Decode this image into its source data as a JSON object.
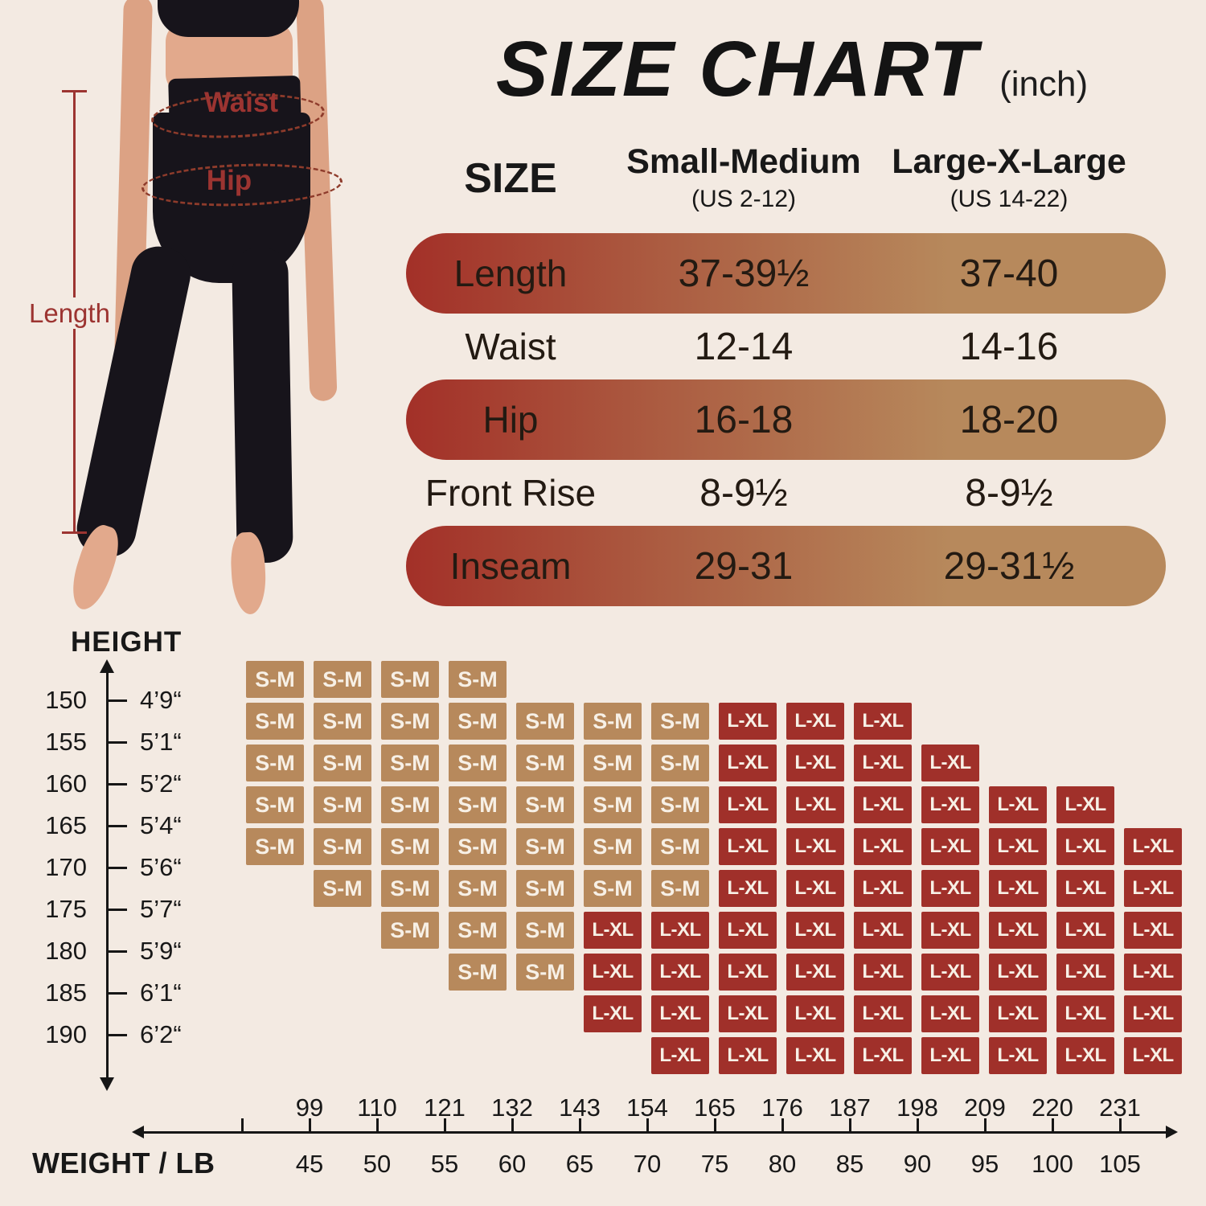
{
  "title": {
    "main": "SIZE CHART",
    "unit": "(inch)"
  },
  "size_table": {
    "size_header": "SIZE",
    "sm_header": "Small-Medium",
    "sm_sub": "(US 2-12)",
    "lxl_header": "Large-X-Large",
    "lxl_sub": "(US 14-22)",
    "rows": [
      {
        "label": "Length",
        "sm": "37-39½",
        "lxl": "37-40",
        "pill": true
      },
      {
        "label": "Waist",
        "sm": "12-14",
        "lxl": "14-16",
        "pill": false
      },
      {
        "label": "Hip",
        "sm": "16-18",
        "lxl": "18-20",
        "pill": true
      },
      {
        "label": "Front Rise",
        "sm": "8-9½",
        "lxl": "8-9½",
        "pill": false
      },
      {
        "label": "Inseam",
        "sm": "29-31",
        "lxl": "29-31½",
        "pill": true
      }
    ]
  },
  "figure": {
    "waist_label": "Waist",
    "hip_label": "Hip",
    "length_label": "Length"
  },
  "chart": {
    "height_title": "HEIGHT",
    "weight_title": "WEIGHT / LB",
    "legend": {
      "sm": "S-M",
      "lxl": "L-XL"
    },
    "heights": [
      {
        "cm": "150",
        "ft": "4’9“"
      },
      {
        "cm": "155",
        "ft": "5’1“"
      },
      {
        "cm": "160",
        "ft": "5’2“"
      },
      {
        "cm": "165",
        "ft": "5’4“"
      },
      {
        "cm": "170",
        "ft": "5’6“"
      },
      {
        "cm": "175",
        "ft": "5’7“"
      },
      {
        "cm": "180",
        "ft": "5’9“"
      },
      {
        "cm": "185",
        "ft": "6’1“"
      },
      {
        "cm": "190",
        "ft": "6’2“"
      }
    ],
    "weights": [
      {
        "lb": "99",
        "kg": "45"
      },
      {
        "lb": "110",
        "kg": "50"
      },
      {
        "lb": "121",
        "kg": "55"
      },
      {
        "lb": "132",
        "kg": "60"
      },
      {
        "lb": "143",
        "kg": "65"
      },
      {
        "lb": "154",
        "kg": "70"
      },
      {
        "lb": "165",
        "kg": "75"
      },
      {
        "lb": "176",
        "kg": "80"
      },
      {
        "lb": "187",
        "kg": "85"
      },
      {
        "lb": "198",
        "kg": "90"
      },
      {
        "lb": "209",
        "kg": "95"
      },
      {
        "lb": "220",
        "kg": "100"
      },
      {
        "lb": "231",
        "kg": "105"
      }
    ],
    "rows": [
      "SSSS..........",
      "SSSSSSSLLL....",
      "SSSSSSSLLLL...",
      "SSSSSSSLLLLLL.",
      "SSSSSSSLLLLLLL",
      ".SSSSSSLLLLLLL",
      "..SSSLLLLLLLLL",
      "...SSLLLLLLLLL",
      ".....LLLLLLLLL",
      "......LLLLLLLL"
    ]
  },
  "chart_data": [
    {
      "type": "table",
      "title": "SIZE CHART (inch)",
      "columns": [
        "SIZE",
        "Small-Medium (US 2-12)",
        "Large-X-Large (US 14-22)"
      ],
      "rows": [
        [
          "Length",
          "37-39½",
          "37-40"
        ],
        [
          "Waist",
          "12-14",
          "14-16"
        ],
        [
          "Hip",
          "16-18",
          "18-20"
        ],
        [
          "Front Rise",
          "8-9½",
          "8-9½"
        ],
        [
          "Inseam",
          "29-31",
          "29-31½"
        ]
      ]
    },
    {
      "type": "heatmap",
      "title": "",
      "xlabel": "WEIGHT / LB",
      "ylabel": "HEIGHT",
      "x_weight_lb": [
        99,
        110,
        121,
        132,
        143,
        154,
        165,
        176,
        187,
        198,
        209,
        220,
        231
      ],
      "x_weight_kg": [
        45,
        50,
        55,
        60,
        65,
        70,
        75,
        80,
        85,
        90,
        95,
        100,
        105
      ],
      "y_height_cm": [
        150,
        155,
        160,
        165,
        170,
        175,
        180,
        185,
        190
      ],
      "y_height_ftin": [
        "4’9“",
        "5’1“",
        "5’2“",
        "5’4“",
        "5’6“",
        "5’7“",
        "5’9“",
        "6’1“",
        "6’2“"
      ],
      "legend": {
        "S": "S-M",
        "L": "L-XL",
        ".": "empty"
      },
      "grid_rows": [
        "SSSS..........",
        "SSSSSSSLLL....",
        "SSSSSSSLLLL...",
        "SSSSSSSLLLLLL.",
        "SSSSSSSLLLLLLL",
        ".SSSSSSLLLLLLL",
        "..SSSLLLLLLLLL",
        "...SSLLLLLLLLL",
        ".....LLLLLLLLL",
        "......LLLLLLLL"
      ]
    }
  ],
  "colors": {
    "background": "#f3eae2",
    "tan": "#b7895c",
    "red": "#a0302a",
    "pill_gradient_left": "#a33028",
    "annotation_red": "#9c3431",
    "dash_red": "#8e3b2b",
    "text_black": "#181818",
    "cell_text": "#f7f0e6",
    "skin": "#e2a98c",
    "garment_black": "#17141b"
  }
}
